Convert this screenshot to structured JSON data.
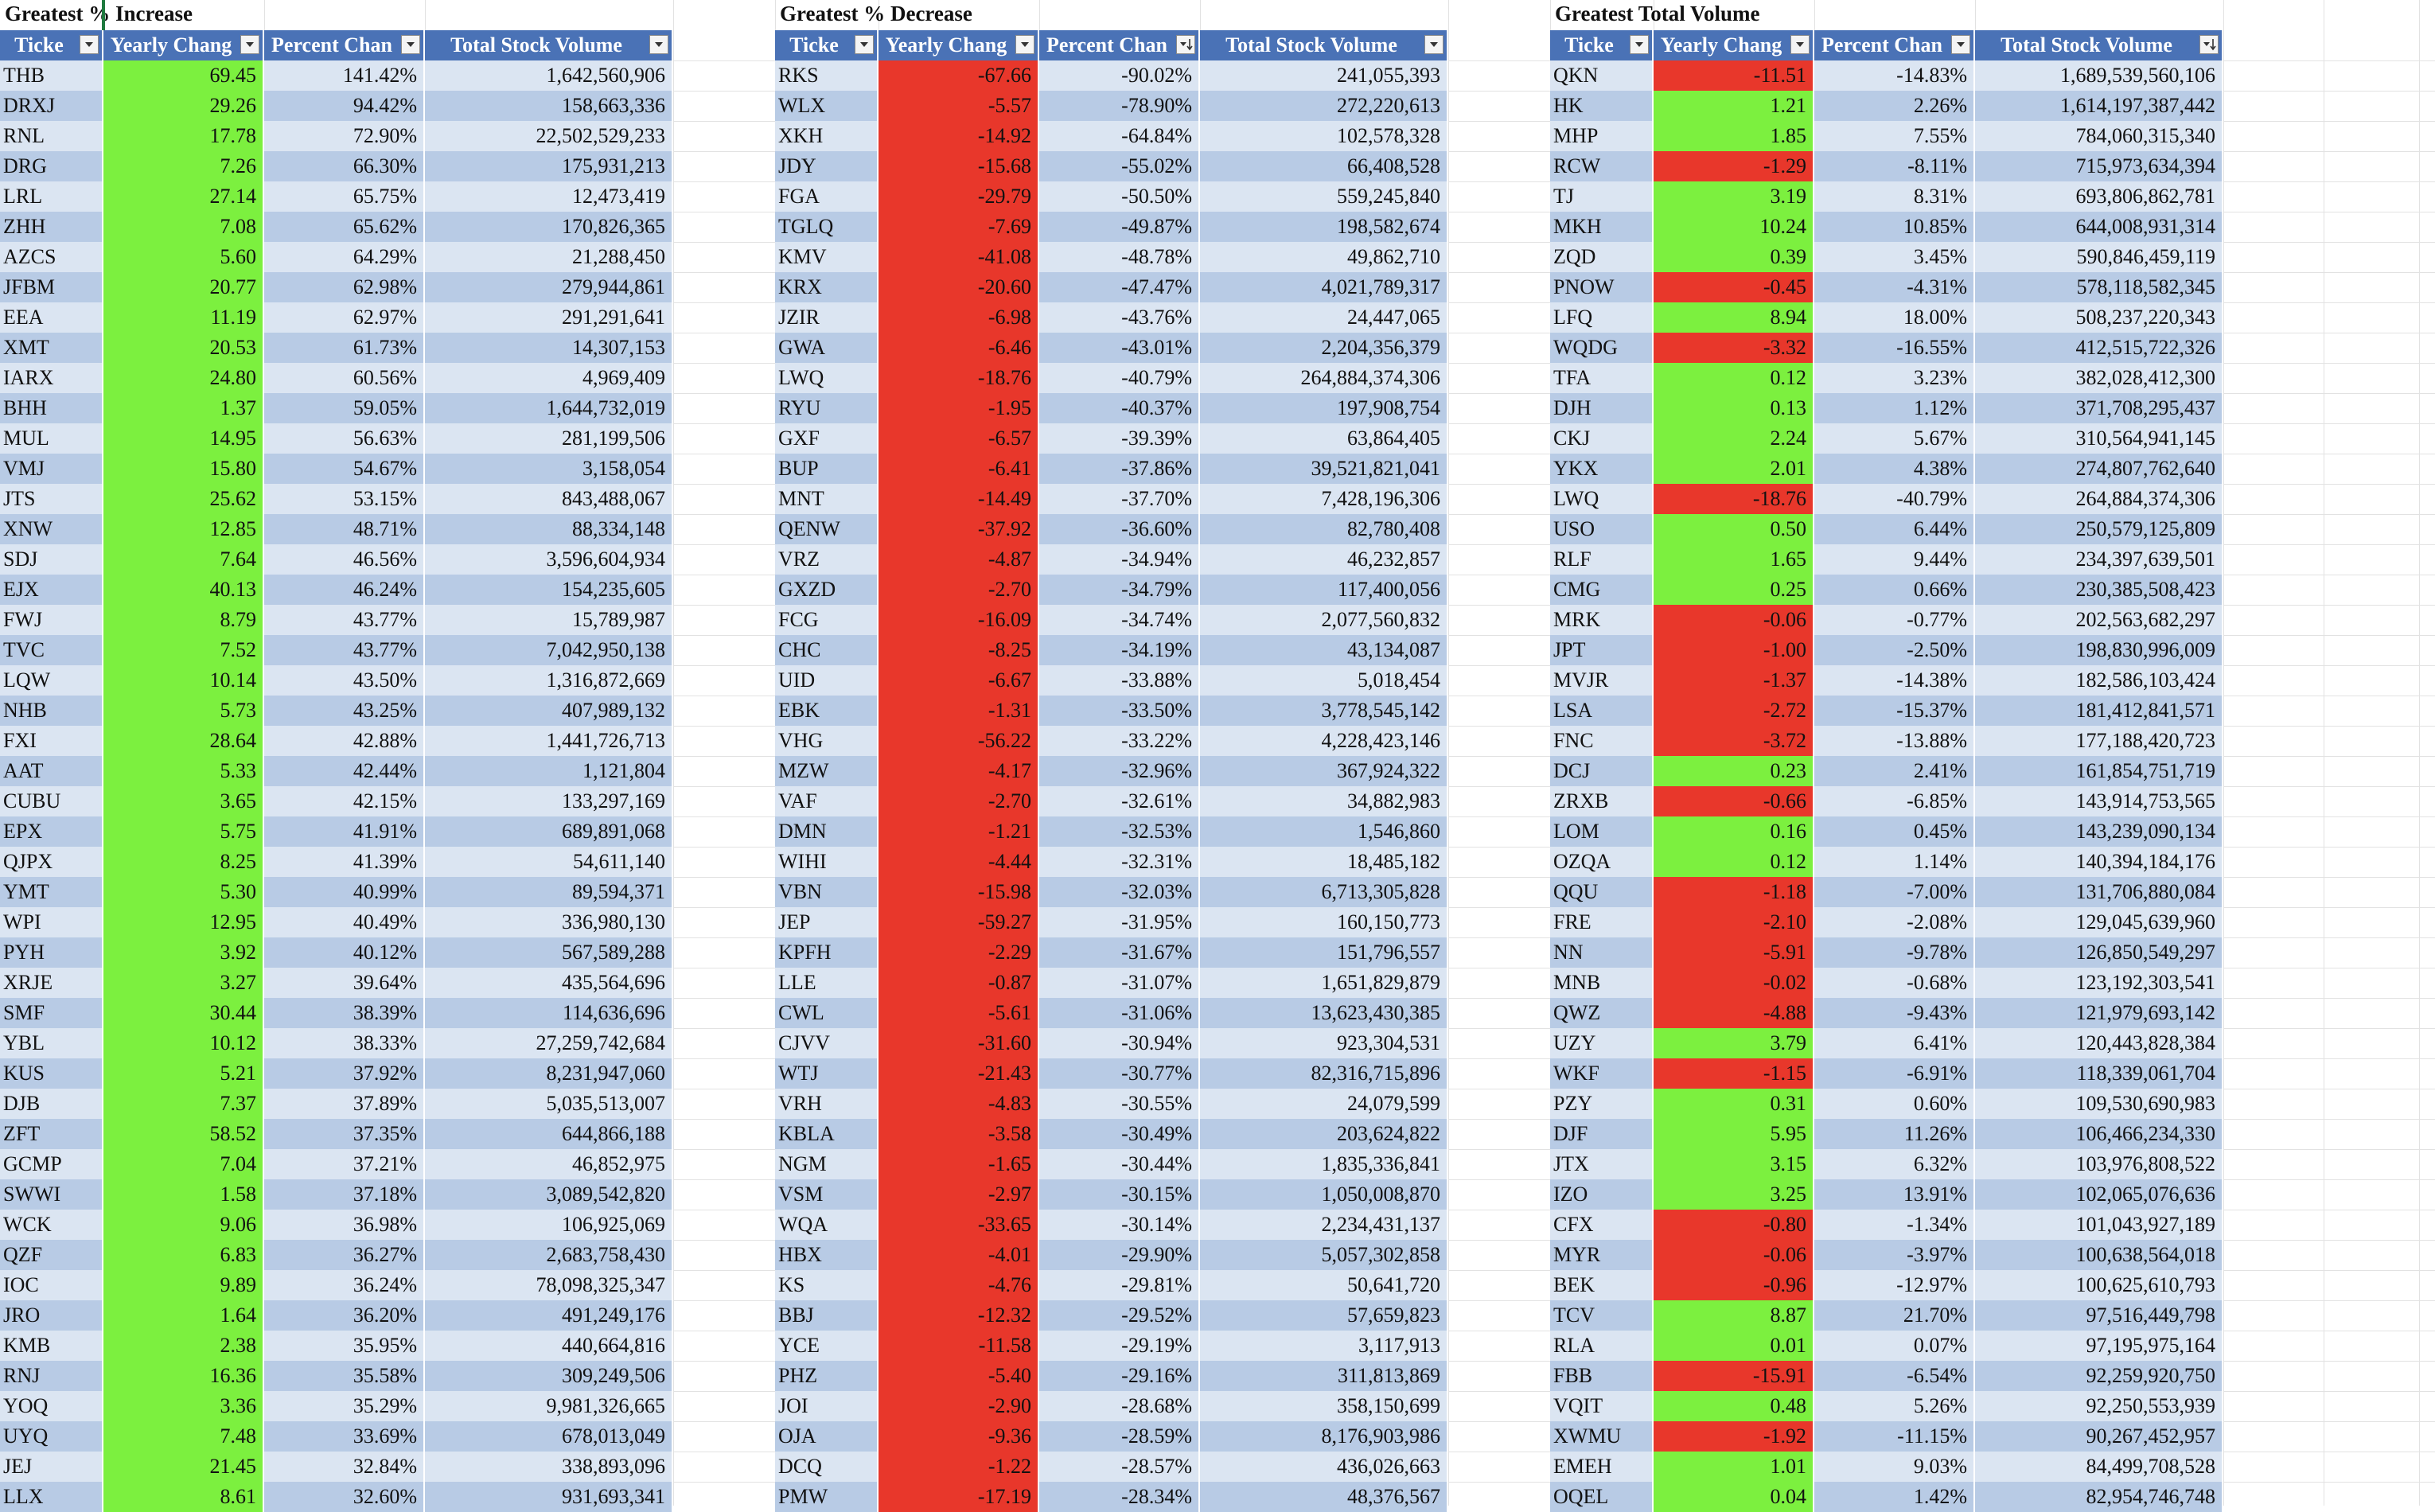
{
  "sheet": {
    "colors": {
      "header": "#4a72b6",
      "band_light": "#dbe5f2",
      "band_dark": "#b8cbe5",
      "positive": "#7cf03f",
      "negative": "#e8372b"
    },
    "column_headers": [
      "Ticke",
      "Yearly Chang",
      "Percent Chan",
      "Total Stock Volume"
    ],
    "sections": [
      {
        "title": "Greatest % Increase",
        "filter_icons": [
          "filter-dropdown-icon",
          "filter-dropdown-icon",
          "filter-dropdown-icon",
          "filter-dropdown-icon"
        ],
        "rows": [
          [
            "THB",
            "69.45",
            "141.42%",
            "1,642,560,906"
          ],
          [
            "DRXJ",
            "29.26",
            "94.42%",
            "158,663,336"
          ],
          [
            "RNL",
            "17.78",
            "72.90%",
            "22,502,529,233"
          ],
          [
            "DRG",
            "7.26",
            "66.30%",
            "175,931,213"
          ],
          [
            "LRL",
            "27.14",
            "65.75%",
            "12,473,419"
          ],
          [
            "ZHH",
            "7.08",
            "65.62%",
            "170,826,365"
          ],
          [
            "AZCS",
            "5.60",
            "64.29%",
            "21,288,450"
          ],
          [
            "JFBM",
            "20.77",
            "62.98%",
            "279,944,861"
          ],
          [
            "EEA",
            "11.19",
            "62.97%",
            "291,291,641"
          ],
          [
            "XMT",
            "20.53",
            "61.73%",
            "14,307,153"
          ],
          [
            "IARX",
            "24.80",
            "60.56%",
            "4,969,409"
          ],
          [
            "BHH",
            "1.37",
            "59.05%",
            "1,644,732,019"
          ],
          [
            "MUL",
            "14.95",
            "56.63%",
            "281,199,506"
          ],
          [
            "VMJ",
            "15.80",
            "54.67%",
            "3,158,054"
          ],
          [
            "JTS",
            "25.62",
            "53.15%",
            "843,488,067"
          ],
          [
            "XNW",
            "12.85",
            "48.71%",
            "88,334,148"
          ],
          [
            "SDJ",
            "7.64",
            "46.56%",
            "3,596,604,934"
          ],
          [
            "EJX",
            "40.13",
            "46.24%",
            "154,235,605"
          ],
          [
            "FWJ",
            "8.79",
            "43.77%",
            "15,789,987"
          ],
          [
            "TVC",
            "7.52",
            "43.77%",
            "7,042,950,138"
          ],
          [
            "LQW",
            "10.14",
            "43.50%",
            "1,316,872,669"
          ],
          [
            "NHB",
            "5.73",
            "43.25%",
            "407,989,132"
          ],
          [
            "FXI",
            "28.64",
            "42.88%",
            "1,441,726,713"
          ],
          [
            "AAT",
            "5.33",
            "42.44%",
            "1,121,804"
          ],
          [
            "CUBU",
            "3.65",
            "42.15%",
            "133,297,169"
          ],
          [
            "EPX",
            "5.75",
            "41.91%",
            "689,891,068"
          ],
          [
            "QJPX",
            "8.25",
            "41.39%",
            "54,611,140"
          ],
          [
            "YMT",
            "5.30",
            "40.99%",
            "89,594,371"
          ],
          [
            "WPI",
            "12.95",
            "40.49%",
            "336,980,130"
          ],
          [
            "PYH",
            "3.92",
            "40.12%",
            "567,589,288"
          ],
          [
            "XRJE",
            "3.27",
            "39.64%",
            "435,564,696"
          ],
          [
            "SMF",
            "30.44",
            "38.39%",
            "114,636,696"
          ],
          [
            "YBL",
            "10.12",
            "38.33%",
            "27,259,742,684"
          ],
          [
            "KUS",
            "5.21",
            "37.92%",
            "8,231,947,060"
          ],
          [
            "DJB",
            "7.37",
            "37.89%",
            "5,035,513,007"
          ],
          [
            "ZFT",
            "58.52",
            "37.35%",
            "644,866,188"
          ],
          [
            "GCMP",
            "7.04",
            "37.21%",
            "46,852,975"
          ],
          [
            "SWWI",
            "1.58",
            "37.18%",
            "3,089,542,820"
          ],
          [
            "WCK",
            "9.06",
            "36.98%",
            "106,925,069"
          ],
          [
            "QZF",
            "6.83",
            "36.27%",
            "2,683,758,430"
          ],
          [
            "IOC",
            "9.89",
            "36.24%",
            "78,098,325,347"
          ],
          [
            "JRO",
            "1.64",
            "36.20%",
            "491,249,176"
          ],
          [
            "KMB",
            "2.38",
            "35.95%",
            "440,664,816"
          ],
          [
            "RNJ",
            "16.36",
            "35.58%",
            "309,249,506"
          ],
          [
            "YOQ",
            "3.36",
            "35.29%",
            "9,981,326,665"
          ],
          [
            "UYQ",
            "7.48",
            "33.69%",
            "678,013,049"
          ],
          [
            "JEJ",
            "21.45",
            "32.84%",
            "338,893,096"
          ],
          [
            "LLX",
            "8.61",
            "32.60%",
            "931,693,341"
          ]
        ]
      },
      {
        "title": "Greatest % Decrease",
        "filter_icons": [
          "filter-dropdown-icon",
          "filter-dropdown-icon",
          "filter-sorted-icon",
          "filter-dropdown-icon"
        ],
        "rows": [
          [
            "RKS",
            "-67.66",
            "-90.02%",
            "241,055,393"
          ],
          [
            "WLX",
            "-5.57",
            "-78.90%",
            "272,220,613"
          ],
          [
            "XKH",
            "-14.92",
            "-64.84%",
            "102,578,328"
          ],
          [
            "JDY",
            "-15.68",
            "-55.02%",
            "66,408,528"
          ],
          [
            "FGA",
            "-29.79",
            "-50.50%",
            "559,245,840"
          ],
          [
            "TGLQ",
            "-7.69",
            "-49.87%",
            "198,582,674"
          ],
          [
            "KMV",
            "-41.08",
            "-48.78%",
            "49,862,710"
          ],
          [
            "KRX",
            "-20.60",
            "-47.47%",
            "4,021,789,317"
          ],
          [
            "JZIR",
            "-6.98",
            "-43.76%",
            "24,447,065"
          ],
          [
            "GWA",
            "-6.46",
            "-43.01%",
            "2,204,356,379"
          ],
          [
            "LWQ",
            "-18.76",
            "-40.79%",
            "264,884,374,306"
          ],
          [
            "RYU",
            "-1.95",
            "-40.37%",
            "197,908,754"
          ],
          [
            "GXF",
            "-6.57",
            "-39.39%",
            "63,864,405"
          ],
          [
            "BUP",
            "-6.41",
            "-37.86%",
            "39,521,821,041"
          ],
          [
            "MNT",
            "-14.49",
            "-37.70%",
            "7,428,196,306"
          ],
          [
            "QENW",
            "-37.92",
            "-36.60%",
            "82,780,408"
          ],
          [
            "VRZ",
            "-4.87",
            "-34.94%",
            "46,232,857"
          ],
          [
            "GXZD",
            "-2.70",
            "-34.79%",
            "117,400,056"
          ],
          [
            "FCG",
            "-16.09",
            "-34.74%",
            "2,077,560,832"
          ],
          [
            "CHC",
            "-8.25",
            "-34.19%",
            "43,134,087"
          ],
          [
            "UID",
            "-6.67",
            "-33.88%",
            "5,018,454"
          ],
          [
            "EBK",
            "-1.31",
            "-33.50%",
            "3,778,545,142"
          ],
          [
            "VHG",
            "-56.22",
            "-33.22%",
            "4,228,423,146"
          ],
          [
            "MZW",
            "-4.17",
            "-32.96%",
            "367,924,322"
          ],
          [
            "VAF",
            "-2.70",
            "-32.61%",
            "34,882,983"
          ],
          [
            "DMN",
            "-1.21",
            "-32.53%",
            "1,546,860"
          ],
          [
            "WIHI",
            "-4.44",
            "-32.31%",
            "18,485,182"
          ],
          [
            "VBN",
            "-15.98",
            "-32.03%",
            "6,713,305,828"
          ],
          [
            "JEP",
            "-59.27",
            "-31.95%",
            "160,150,773"
          ],
          [
            "KPFH",
            "-2.29",
            "-31.67%",
            "151,796,557"
          ],
          [
            "LLE",
            "-0.87",
            "-31.07%",
            "1,651,829,879"
          ],
          [
            "CWL",
            "-5.61",
            "-31.06%",
            "13,623,430,385"
          ],
          [
            "CJVV",
            "-31.60",
            "-30.94%",
            "923,304,531"
          ],
          [
            "WTJ",
            "-21.43",
            "-30.77%",
            "82,316,715,896"
          ],
          [
            "VRH",
            "-4.83",
            "-30.55%",
            "24,079,599"
          ],
          [
            "KBLA",
            "-3.58",
            "-30.49%",
            "203,624,822"
          ],
          [
            "NGM",
            "-1.65",
            "-30.44%",
            "1,835,336,841"
          ],
          [
            "VSM",
            "-2.97",
            "-30.15%",
            "1,050,008,870"
          ],
          [
            "WQA",
            "-33.65",
            "-30.14%",
            "2,234,431,137"
          ],
          [
            "HBX",
            "-4.01",
            "-29.90%",
            "5,057,302,858"
          ],
          [
            "KS",
            "-4.76",
            "-29.81%",
            "50,641,720"
          ],
          [
            "BBJ",
            "-12.32",
            "-29.52%",
            "57,659,823"
          ],
          [
            "YCE",
            "-11.58",
            "-29.19%",
            "3,117,913"
          ],
          [
            "PHZ",
            "-5.40",
            "-29.16%",
            "311,813,869"
          ],
          [
            "JOI",
            "-2.90",
            "-28.68%",
            "358,150,699"
          ],
          [
            "OJA",
            "-9.36",
            "-28.59%",
            "8,176,903,986"
          ],
          [
            "DCQ",
            "-1.22",
            "-28.57%",
            "436,026,663"
          ],
          [
            "PMW",
            "-17.19",
            "-28.34%",
            "48,376,567"
          ]
        ]
      },
      {
        "title": "Greatest Total Volume",
        "filter_icons": [
          "filter-dropdown-icon",
          "filter-dropdown-icon",
          "filter-dropdown-icon",
          "filter-sorted-icon"
        ],
        "rows": [
          [
            "QKN",
            "-11.51",
            "-14.83%",
            "1,689,539,560,106"
          ],
          [
            "HK",
            "1.21",
            "2.26%",
            "1,614,197,387,442"
          ],
          [
            "MHP",
            "1.85",
            "7.55%",
            "784,060,315,340"
          ],
          [
            "RCW",
            "-1.29",
            "-8.11%",
            "715,973,634,394"
          ],
          [
            "TJ",
            "3.19",
            "8.31%",
            "693,806,862,781"
          ],
          [
            "MKH",
            "10.24",
            "10.85%",
            "644,008,931,314"
          ],
          [
            "ZQD",
            "0.39",
            "3.45%",
            "590,846,459,119"
          ],
          [
            "PNOW",
            "-0.45",
            "-4.31%",
            "578,118,582,345"
          ],
          [
            "LFQ",
            "8.94",
            "18.00%",
            "508,237,220,343"
          ],
          [
            "WQDG",
            "-3.32",
            "-16.55%",
            "412,515,722,326"
          ],
          [
            "TFA",
            "0.12",
            "3.23%",
            "382,028,412,300"
          ],
          [
            "DJH",
            "0.13",
            "1.12%",
            "371,708,295,437"
          ],
          [
            "CKJ",
            "2.24",
            "5.67%",
            "310,564,941,145"
          ],
          [
            "YKX",
            "2.01",
            "4.38%",
            "274,807,762,640"
          ],
          [
            "LWQ",
            "-18.76",
            "-40.79%",
            "264,884,374,306"
          ],
          [
            "USO",
            "0.50",
            "6.44%",
            "250,579,125,809"
          ],
          [
            "RLF",
            "1.65",
            "9.44%",
            "234,397,639,501"
          ],
          [
            "CMG",
            "0.25",
            "0.66%",
            "230,385,508,423"
          ],
          [
            "MRK",
            "-0.06",
            "-0.77%",
            "202,563,682,297"
          ],
          [
            "JPT",
            "-1.00",
            "-2.50%",
            "198,830,996,009"
          ],
          [
            "MVJR",
            "-1.37",
            "-14.38%",
            "182,586,103,424"
          ],
          [
            "LSA",
            "-2.72",
            "-15.37%",
            "181,412,841,571"
          ],
          [
            "FNC",
            "-3.72",
            "-13.88%",
            "177,188,420,723"
          ],
          [
            "DCJ",
            "0.23",
            "2.41%",
            "161,854,751,719"
          ],
          [
            "ZRXB",
            "-0.66",
            "-6.85%",
            "143,914,753,565"
          ],
          [
            "LOM",
            "0.16",
            "0.45%",
            "143,239,090,134"
          ],
          [
            "OZQA",
            "0.12",
            "1.14%",
            "140,394,184,176"
          ],
          [
            "QQU",
            "-1.18",
            "-7.00%",
            "131,706,880,084"
          ],
          [
            "FRE",
            "-2.10",
            "-2.08%",
            "129,045,639,960"
          ],
          [
            "NN",
            "-5.91",
            "-9.78%",
            "126,850,549,297"
          ],
          [
            "MNB",
            "-0.02",
            "-0.68%",
            "123,192,303,541"
          ],
          [
            "QWZ",
            "-4.88",
            "-9.43%",
            "121,979,693,142"
          ],
          [
            "UZY",
            "3.79",
            "6.41%",
            "120,443,828,384"
          ],
          [
            "WKF",
            "-1.15",
            "-6.91%",
            "118,339,061,704"
          ],
          [
            "PZY",
            "0.31",
            "0.60%",
            "109,530,690,983"
          ],
          [
            "DJF",
            "5.95",
            "11.26%",
            "106,466,234,330"
          ],
          [
            "JTX",
            "3.15",
            "6.32%",
            "103,976,808,522"
          ],
          [
            "IZO",
            "3.25",
            "13.91%",
            "102,065,076,636"
          ],
          [
            "CFX",
            "-0.80",
            "-1.34%",
            "101,043,927,189"
          ],
          [
            "MYR",
            "-0.06",
            "-3.97%",
            "100,638,564,018"
          ],
          [
            "BEK",
            "-0.96",
            "-12.97%",
            "100,625,610,793"
          ],
          [
            "TCV",
            "8.87",
            "21.70%",
            "97,516,449,798"
          ],
          [
            "RLA",
            "0.01",
            "0.07%",
            "97,195,975,164"
          ],
          [
            "FBB",
            "-15.91",
            "-6.54%",
            "92,259,920,750"
          ],
          [
            "VQIT",
            "0.48",
            "5.26%",
            "92,250,553,939"
          ],
          [
            "XWMU",
            "-1.92",
            "-11.15%",
            "90,267,452,957"
          ],
          [
            "EMEH",
            "1.01",
            "9.03%",
            "84,499,708,528"
          ],
          [
            "OQEL",
            "0.04",
            "1.42%",
            "82,954,746,748"
          ]
        ]
      }
    ]
  }
}
